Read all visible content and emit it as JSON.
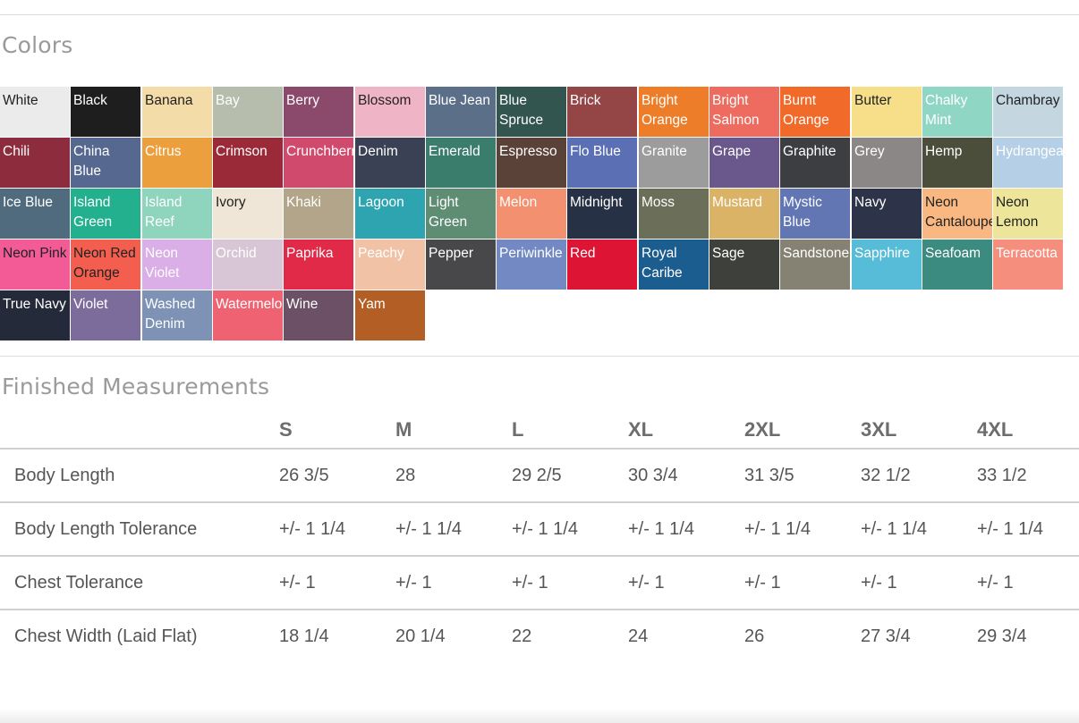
{
  "colors_section": {
    "title": "Colors",
    "swatches": [
      {
        "name": "White",
        "color": "#ebebeb",
        "text": "#222222"
      },
      {
        "name": "Black",
        "color": "#1e1e1e",
        "text": "#ffffff"
      },
      {
        "name": "Banana",
        "color": "#f4dca8",
        "text": "#222222"
      },
      {
        "name": "Bay",
        "color": "#b6bdad",
        "text": "#ffffff"
      },
      {
        "name": "Berry",
        "color": "#8b4a6c",
        "text": "#ffffff"
      },
      {
        "name": "Blossom",
        "color": "#efb5c6",
        "text": "#222222"
      },
      {
        "name": "Blue Jean",
        "color": "#5c6f88",
        "text": "#ffffff"
      },
      {
        "name": "Blue Spruce",
        "color": "#32564f",
        "text": "#ffffff"
      },
      {
        "name": "Brick",
        "color": "#944646",
        "text": "#ffffff"
      },
      {
        "name": "Bright Orange",
        "color": "#ee7d2a",
        "text": "#ffffff"
      },
      {
        "name": "Bright Salmon",
        "color": "#ee6b5f",
        "text": "#ffffff"
      },
      {
        "name": "Burnt Orange",
        "color": "#f26a2a",
        "text": "#ffffff"
      },
      {
        "name": "Butter",
        "color": "#f7df8a",
        "text": "#222222"
      },
      {
        "name": "Chalky Mint",
        "color": "#8fd7c4",
        "text": "#ffffff"
      },
      {
        "name": "Chambray",
        "color": "#c4d7e0",
        "text": "#222222"
      },
      {
        "name": "Chili",
        "color": "#8c2c3c",
        "text": "#ffffff"
      },
      {
        "name": "China Blue",
        "color": "#56688f",
        "text": "#ffffff"
      },
      {
        "name": "Citrus",
        "color": "#eba03d",
        "text": "#ffffff"
      },
      {
        "name": "Crimson",
        "color": "#9a2a38",
        "text": "#ffffff"
      },
      {
        "name": "Crunchberry",
        "color": "#cf4a6c",
        "text": "#ffffff"
      },
      {
        "name": "Denim",
        "color": "#3a4154",
        "text": "#ffffff"
      },
      {
        "name": "Emerald",
        "color": "#3a7d6c",
        "text": "#ffffff"
      },
      {
        "name": "Espresso",
        "color": "#5a4238",
        "text": "#ffffff"
      },
      {
        "name": "Flo Blue",
        "color": "#5a6fb4",
        "text": "#ffffff"
      },
      {
        "name": "Granite",
        "color": "#9c9c9c",
        "text": "#ffffff"
      },
      {
        "name": "Grape",
        "color": "#6a588c",
        "text": "#ffffff"
      },
      {
        "name": "Graphite",
        "color": "#3d3e42",
        "text": "#ffffff"
      },
      {
        "name": "Grey",
        "color": "#8b8787",
        "text": "#ffffff"
      },
      {
        "name": "Hemp",
        "color": "#4a4e3a",
        "text": "#ffffff"
      },
      {
        "name": "Hydrangea",
        "color": "#b4cfe6",
        "text": "#ffffff"
      },
      {
        "name": "Ice Blue",
        "color": "#4f6b7d",
        "text": "#ffffff"
      },
      {
        "name": "Island Green",
        "color": "#22b08e",
        "text": "#ffffff"
      },
      {
        "name": "Island Reef",
        "color": "#8fd4bd",
        "text": "#ffffff"
      },
      {
        "name": "Ivory",
        "color": "#efe6d8",
        "text": "#222222"
      },
      {
        "name": "Khaki",
        "color": "#b3a58a",
        "text": "#ffffff"
      },
      {
        "name": "Lagoon",
        "color": "#2ea4b0",
        "text": "#ffffff"
      },
      {
        "name": "Light Green",
        "color": "#5f8d74",
        "text": "#ffffff"
      },
      {
        "name": "Melon",
        "color": "#f29070",
        "text": "#ffffff"
      },
      {
        "name": "Midnight",
        "color": "#263145",
        "text": "#ffffff"
      },
      {
        "name": "Moss",
        "color": "#6b6e58",
        "text": "#ffffff"
      },
      {
        "name": "Mustard",
        "color": "#dbb366",
        "text": "#ffffff"
      },
      {
        "name": "Mystic Blue",
        "color": "#6176b2",
        "text": "#ffffff"
      },
      {
        "name": "Navy",
        "color": "#2d3348",
        "text": "#ffffff"
      },
      {
        "name": "Neon Cantaloupe",
        "color": "#f9b882",
        "text": "#222222"
      },
      {
        "name": "Neon Lemon",
        "color": "#ede69a",
        "text": "#222222"
      },
      {
        "name": "Neon Pink",
        "color": "#f35b96",
        "text": "#222222"
      },
      {
        "name": "Neon Red Orange",
        "color": "#f45e4e",
        "text": "#222222"
      },
      {
        "name": "Neon Violet",
        "color": "#daaee6",
        "text": "#ffffff"
      },
      {
        "name": "Orchid",
        "color": "#d8c5d6",
        "text": "#ffffff"
      },
      {
        "name": "Paprika",
        "color": "#e02a48",
        "text": "#ffffff"
      },
      {
        "name": "Peachy",
        "color": "#f2c2a6",
        "text": "#ffffff"
      },
      {
        "name": "Pepper",
        "color": "#48484a",
        "text": "#ffffff"
      },
      {
        "name": "Periwinkle",
        "color": "#7389c4",
        "text": "#ffffff"
      },
      {
        "name": "Red",
        "color": "#dd1434",
        "text": "#ffffff"
      },
      {
        "name": "Royal Caribe",
        "color": "#1c5d90",
        "text": "#ffffff"
      },
      {
        "name": "Sage",
        "color": "#3e403c",
        "text": "#ffffff"
      },
      {
        "name": "Sandstone",
        "color": "#868273",
        "text": "#ffffff"
      },
      {
        "name": "Sapphire",
        "color": "#56bcd7",
        "text": "#ffffff"
      },
      {
        "name": "Seafoam",
        "color": "#3c8b80",
        "text": "#ffffff"
      },
      {
        "name": "Terracotta",
        "color": "#f58e7c",
        "text": "#ffffff"
      },
      {
        "name": "True Navy",
        "color": "#252a3a",
        "text": "#ffffff"
      },
      {
        "name": "Violet",
        "color": "#7c6c9c",
        "text": "#ffffff"
      },
      {
        "name": "Washed Denim",
        "color": "#7d92b4",
        "text": "#ffffff"
      },
      {
        "name": "Watermelon",
        "color": "#ef6271",
        "text": "#ffffff"
      },
      {
        "name": "Wine",
        "color": "#6c5166",
        "text": "#ffffff"
      },
      {
        "name": "Yam",
        "color": "#b35e24",
        "text": "#ffffff"
      }
    ]
  },
  "measurements_section": {
    "title": "Finished Measurements",
    "sizes": [
      "S",
      "M",
      "L",
      "XL",
      "2XL",
      "3XL",
      "4XL"
    ],
    "rows": [
      {
        "label": "Body Length",
        "values": [
          "26 3/5",
          "28",
          "29 2/5",
          "30 3/4",
          "31 3/5",
          "32 1/2",
          "33 1/2"
        ]
      },
      {
        "label": "Body Length Tolerance",
        "values": [
          "+/- 1 1/4",
          "+/- 1 1/4",
          "+/- 1 1/4",
          "+/- 1 1/4",
          "+/- 1 1/4",
          "+/- 1 1/4",
          "+/- 1 1/4"
        ]
      },
      {
        "label": "Chest Tolerance",
        "values": [
          "+/- 1",
          "+/- 1",
          "+/- 1",
          "+/- 1",
          "+/- 1",
          "+/- 1",
          "+/- 1"
        ]
      },
      {
        "label": "Chest Width (Laid Flat)",
        "values": [
          "18 1/4",
          "20 1/4",
          "22",
          "24",
          "26",
          "27 3/4",
          "29 3/4"
        ]
      }
    ]
  }
}
